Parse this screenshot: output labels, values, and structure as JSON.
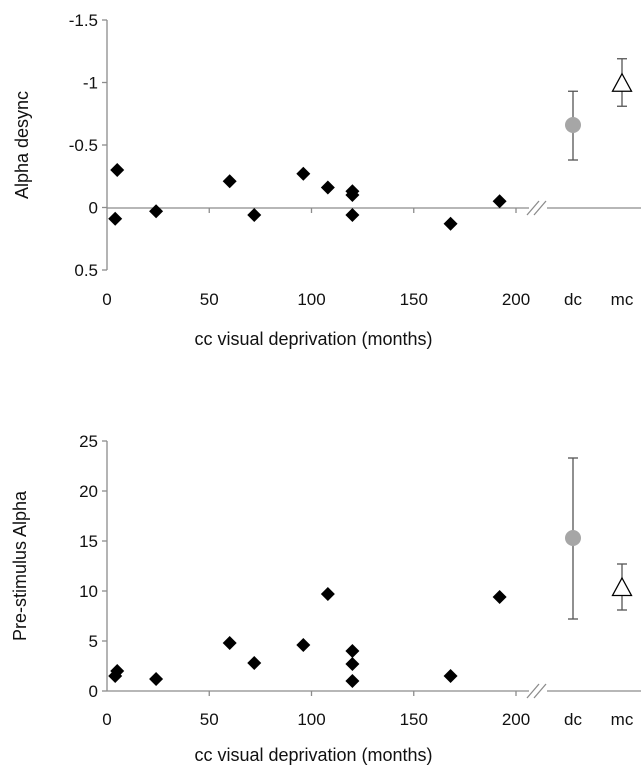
{
  "chart_data": [
    {
      "type": "scatter",
      "title": "",
      "xlabel": "cc visual deprivation (months)",
      "ylabel": "Alpha desync",
      "y_axis_inverted": true,
      "ylim": [
        0.5,
        -1.5
      ],
      "y_ticks": [
        -1.5,
        -1,
        -0.5,
        0,
        0.5
      ],
      "y_tick_labels": [
        "-1.5",
        "-1",
        "-0.5",
        "0",
        "0.5"
      ],
      "xlim": [
        0,
        200
      ],
      "x_ticks": [
        0,
        50,
        100,
        150,
        200
      ],
      "x_tick_labels": [
        "0",
        "50",
        "100",
        "150",
        "200"
      ],
      "axis_break": true,
      "grid": false,
      "series": [
        {
          "marker": "diamond",
          "color": "#000000",
          "points": [
            {
              "x": 4,
              "y": 0.09
            },
            {
              "x": 5,
              "y": -0.3
            },
            {
              "x": 24,
              "y": 0.03
            },
            {
              "x": 60,
              "y": -0.21
            },
            {
              "x": 72,
              "y": 0.06
            },
            {
              "x": 96,
              "y": -0.27
            },
            {
              "x": 108,
              "y": -0.16
            },
            {
              "x": 120,
              "y": -0.13
            },
            {
              "x": 120,
              "y": -0.1
            },
            {
              "x": 120,
              "y": 0.06
            },
            {
              "x": 168,
              "y": 0.13
            },
            {
              "x": 192,
              "y": -0.05
            }
          ]
        }
      ],
      "groups": [
        {
          "label": "dc",
          "mean": -0.66,
          "err_low": -0.38,
          "err_high": -0.93,
          "marker": "circle",
          "color": "#a6a6a6"
        },
        {
          "label": "mc",
          "mean": -0.99,
          "err_low": -0.81,
          "err_high": -1.19,
          "marker": "open-triangle",
          "color": "#000000"
        }
      ]
    },
    {
      "type": "scatter",
      "title": "",
      "xlabel": "cc visual deprivation (months)",
      "ylabel": "Pre-stimulus Alpha",
      "y_axis_inverted": false,
      "ylim": [
        0,
        25
      ],
      "y_ticks": [
        0,
        5,
        10,
        15,
        20,
        25
      ],
      "y_tick_labels": [
        "0",
        "5",
        "10",
        "15",
        "20",
        "25"
      ],
      "xlim": [
        0,
        200
      ],
      "x_ticks": [
        0,
        50,
        100,
        150,
        200
      ],
      "x_tick_labels": [
        "0",
        "50",
        "100",
        "150",
        "200"
      ],
      "axis_break": true,
      "grid": false,
      "series": [
        {
          "marker": "diamond",
          "color": "#000000",
          "points": [
            {
              "x": 4,
              "y": 1.5
            },
            {
              "x": 5,
              "y": 2.0
            },
            {
              "x": 24,
              "y": 1.2
            },
            {
              "x": 60,
              "y": 4.8
            },
            {
              "x": 72,
              "y": 2.8
            },
            {
              "x": 96,
              "y": 4.6
            },
            {
              "x": 108,
              "y": 9.7
            },
            {
              "x": 120,
              "y": 4.0
            },
            {
              "x": 120,
              "y": 2.7
            },
            {
              "x": 120,
              "y": 1.0
            },
            {
              "x": 168,
              "y": 1.5
            },
            {
              "x": 192,
              "y": 9.4
            }
          ]
        }
      ],
      "groups": [
        {
          "label": "dc",
          "mean": 15.3,
          "err_low": 7.2,
          "err_high": 23.3,
          "marker": "circle",
          "color": "#a6a6a6"
        },
        {
          "label": "mc",
          "mean": 10.3,
          "err_low": 8.1,
          "err_high": 12.7,
          "marker": "open-triangle",
          "color": "#000000"
        }
      ]
    }
  ]
}
